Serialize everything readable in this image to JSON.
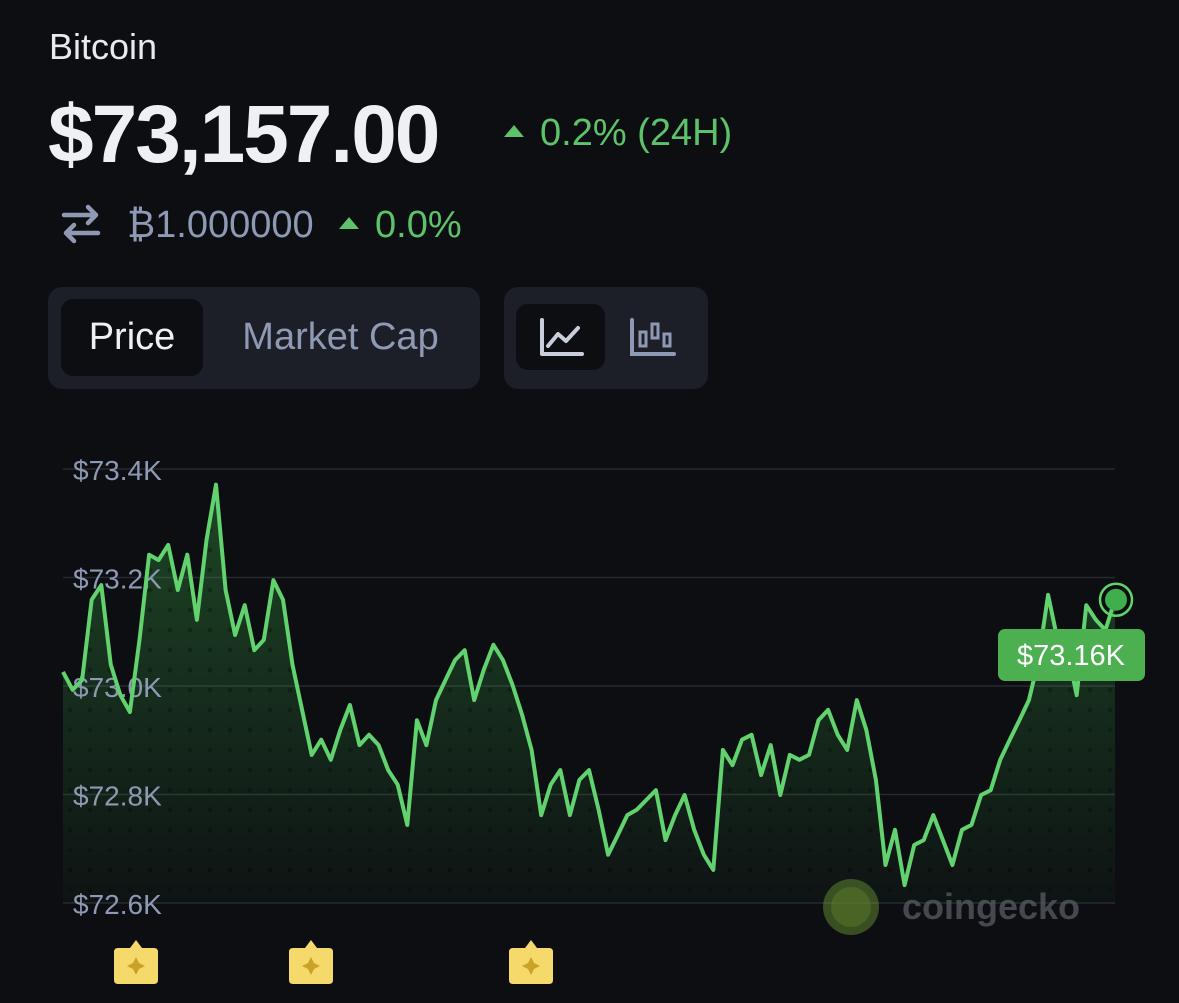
{
  "header": {
    "title": "Bitcoin",
    "price": "$73,157.00",
    "change": "0.2% (24H)",
    "btc_price": "₿1.000000",
    "btc_change": "0.0%"
  },
  "tabs": [
    "Price",
    "Market Cap"
  ],
  "chart_data": {
    "type": "line",
    "color": "#62d26f",
    "values": [
      73026,
      72993,
      73011,
      73159,
      73186,
      73039,
      72983,
      72952,
      73085,
      73242,
      73232,
      73260,
      73177,
      73242,
      73122,
      73269,
      73371,
      73177,
      73094,
      73149,
      73066,
      73085,
      73195,
      73159,
      73039,
      72956,
      72873,
      72901,
      72864,
      72919,
      72965,
      72891,
      72910,
      72891,
      72845,
      72818,
      72744,
      72937,
      72891,
      72974,
      73011,
      73048,
      73066,
      72974,
      73030,
      73076,
      73048,
      73002,
      72947,
      72882,
      72762,
      72818,
      72845,
      72762,
      72827,
      72845,
      72772,
      72689,
      72725,
      72762,
      72772,
      72790,
      72808,
      72716,
      72762,
      72799,
      72735,
      72689,
      72661,
      72882,
      72854,
      72901,
      72910,
      72836,
      72891,
      72799,
      72873,
      72864,
      72873,
      72937,
      72956,
      72910,
      72882,
      72974,
      72919,
      72827,
      72670,
      72735,
      72633,
      72707,
      72716,
      72762,
      72716,
      72670,
      72735,
      72744,
      72799,
      72808,
      72864,
      72901,
      72937,
      72974,
      73048,
      73168,
      73085,
      73066,
      72983,
      73149,
      73122,
      73103,
      73159
    ],
    "ylim": [
      72600,
      73400
    ],
    "yticks": [
      {
        "value": 72600,
        "label": "$72.6K"
      },
      {
        "value": 72800,
        "label": "$72.8K"
      },
      {
        "value": 73000,
        "label": "$73.0K"
      },
      {
        "value": 73200,
        "label": "$73.2K"
      },
      {
        "value": 73400,
        "label": "$73.4K"
      }
    ],
    "grid": true,
    "annotation": "$73.16K",
    "watermark": "coingecko"
  }
}
